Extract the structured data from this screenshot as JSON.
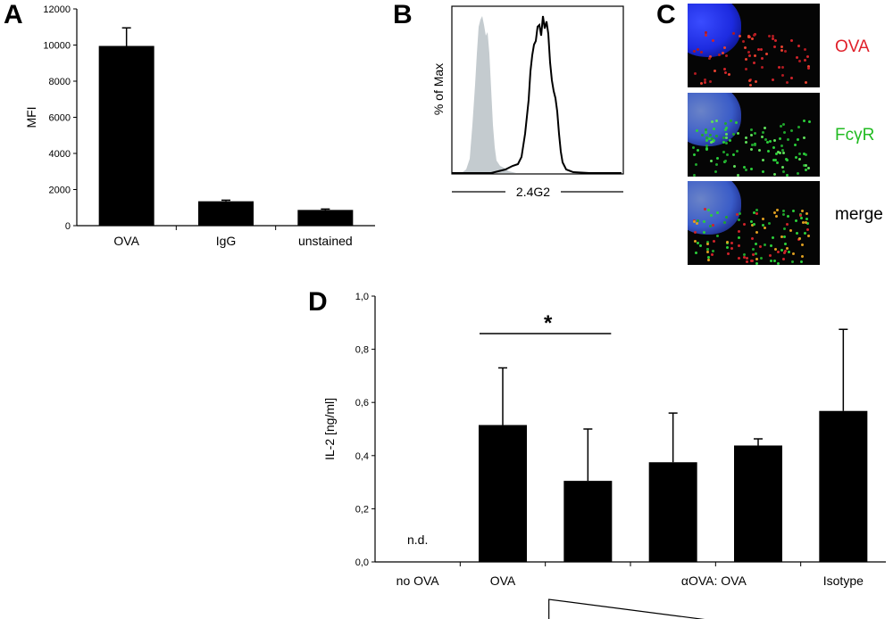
{
  "panels": {
    "A": {
      "letter": "A"
    },
    "B": {
      "letter": "B",
      "ylabel": "% of Max",
      "xlabel": "2.4G2"
    },
    "C": {
      "letter": "C",
      "labels": [
        {
          "text": "OVA",
          "color": "#e0202a"
        },
        {
          "text": "FcγR",
          "color": "#22bb22"
        },
        {
          "text": "merge",
          "color": "#000000"
        }
      ]
    },
    "D": {
      "letter": "D",
      "star": "*",
      "nd": "n.d.",
      "ovasubtitle": "αOVA: OVA"
    }
  },
  "chart_data": [
    {
      "id": "A",
      "type": "bar",
      "categories": [
        "OVA",
        "IgG",
        "unstained"
      ],
      "values": [
        9950,
        1350,
        870
      ],
      "errors": [
        1000,
        60,
        50
      ],
      "ylabel": "MFI",
      "ylim": [
        0,
        12000
      ],
      "yticks": [
        "0",
        "2000",
        "4000",
        "6000",
        "8000",
        "10000",
        "12000"
      ]
    },
    {
      "id": "D",
      "type": "bar",
      "categories": [
        "no OVA",
        "OVA",
        "",
        "",
        "",
        "Isotype"
      ],
      "values": [
        null,
        0.515,
        0.305,
        0.375,
        0.438,
        0.568
      ],
      "errors": [
        null,
        0.215,
        0.195,
        0.185,
        0.025,
        0.307
      ],
      "ylabel": "IL-2 [ng/ml]",
      "ylim": [
        0,
        1.0
      ],
      "yticks": [
        "0,0",
        "0,2",
        "0,4",
        "0,6",
        "0,8",
        "1,0"
      ]
    }
  ]
}
